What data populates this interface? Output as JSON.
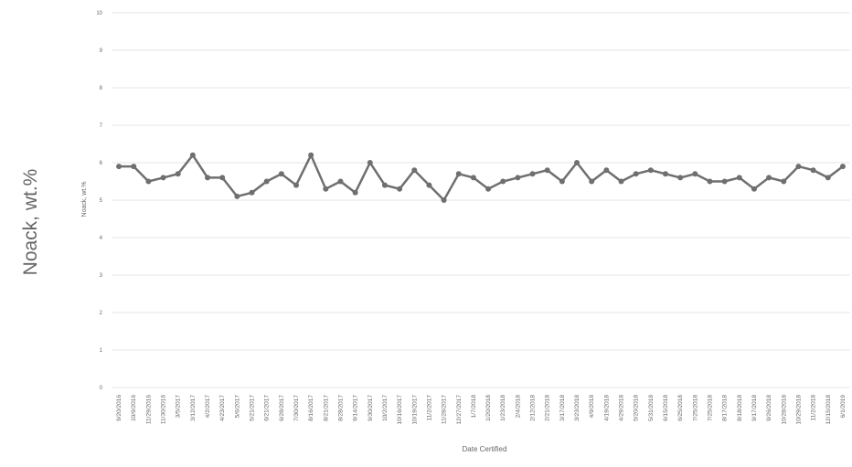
{
  "side_label": "Noack, wt.%",
  "chart_data": {
    "type": "line",
    "ylabel": "Noack, wt.%",
    "xlabel": "Date Certified",
    "categories": [
      "9/20/2016",
      "10/9/2016",
      "11/29/2016",
      "11/30/2016",
      "3/5/2017",
      "3/12/2017",
      "4/2/2017",
      "4/23/2017",
      "5/6/2017",
      "5/21/2017",
      "6/21/2017",
      "6/28/2017",
      "7/30/2017",
      "8/16/2017",
      "8/21/2017",
      "8/28/2017",
      "9/14/2017",
      "9/30/2017",
      "10/2/2017",
      "10/16/2017",
      "10/19/2017",
      "11/2/2017",
      "11/28/2017",
      "12/27/2017",
      "1/7/2018",
      "1/20/2018",
      "1/23/2018",
      "2/4/2018",
      "2/12/2018",
      "2/21/2018",
      "3/17/2018",
      "3/23/2018",
      "4/9/2018",
      "4/19/2018",
      "4/29/2018",
      "5/20/2018",
      "5/31/2018",
      "6/15/2018",
      "6/25/2018",
      "7/25/2018",
      "7/25/2018",
      "8/17/2018",
      "8/18/2018",
      "9/17/2018",
      "9/26/2018",
      "10/28/2018",
      "10/29/2018",
      "11/2/2018",
      "12/15/2018",
      "6/1/2019"
    ],
    "series": [
      {
        "name": "Noack",
        "color": "#6f6f6f",
        "values": [
          5.9,
          5.9,
          5.5,
          5.6,
          5.7,
          6.2,
          5.6,
          5.6,
          5.1,
          5.2,
          5.5,
          5.7,
          5.4,
          6.2,
          5.3,
          5.5,
          5.2,
          6.0,
          5.4,
          5.3,
          5.8,
          5.4,
          5.0,
          5.7,
          5.6,
          5.3,
          5.5,
          5.6,
          5.7,
          5.8,
          5.5,
          6.0,
          5.5,
          5.8,
          5.5,
          5.7,
          5.8,
          5.7,
          5.6,
          5.7,
          5.5,
          5.5,
          5.6,
          5.3,
          5.6,
          5.5,
          5.9,
          5.8,
          5.6,
          5.9
        ]
      }
    ],
    "ylim": [
      0,
      10
    ],
    "yticks": [
      0,
      1,
      2,
      3,
      4,
      5,
      6,
      7,
      8,
      9,
      10
    ],
    "grid": true
  }
}
